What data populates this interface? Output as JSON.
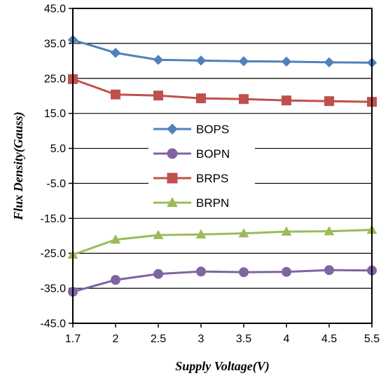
{
  "chart_data": {
    "type": "line",
    "title": "",
    "xlabel": "Supply Voltage(V)",
    "ylabel": "Flux Density(Gauss)",
    "categories": [
      "1.7",
      "2",
      "2.5",
      "3",
      "3.5",
      "4",
      "4.5",
      "5.5"
    ],
    "ylim": [
      -45,
      45
    ],
    "yticks": [
      "45.0",
      "35.0",
      "25.0",
      "15.0",
      "5.0",
      "-5.0",
      "-15.0",
      "-25.0",
      "-35.0",
      "-45.0"
    ],
    "grid": "horizontal major gridlines",
    "legend_position": "center-left",
    "series": [
      {
        "name": "BOPS",
        "values": [
          36.0,
          32.3,
          30.3,
          30.1,
          29.9,
          29.8,
          29.6,
          29.5
        ],
        "color": "#4f81bd",
        "marker": "diamond"
      },
      {
        "name": "BOPN",
        "values": [
          -36.0,
          -32.6,
          -30.9,
          -30.2,
          -30.4,
          -30.3,
          -29.8,
          -29.9
        ],
        "color": "#8064a2",
        "marker": "circle"
      },
      {
        "name": "BRPS",
        "values": [
          24.8,
          20.4,
          20.1,
          19.3,
          19.1,
          18.7,
          18.5,
          18.3
        ],
        "color": "#c0504d",
        "marker": "square"
      },
      {
        "name": "BRPN",
        "values": [
          -25.4,
          -21.1,
          -19.8,
          -19.6,
          -19.3,
          -18.8,
          -18.7,
          -18.3
        ],
        "color": "#9bbb59",
        "marker": "triangle"
      }
    ]
  }
}
